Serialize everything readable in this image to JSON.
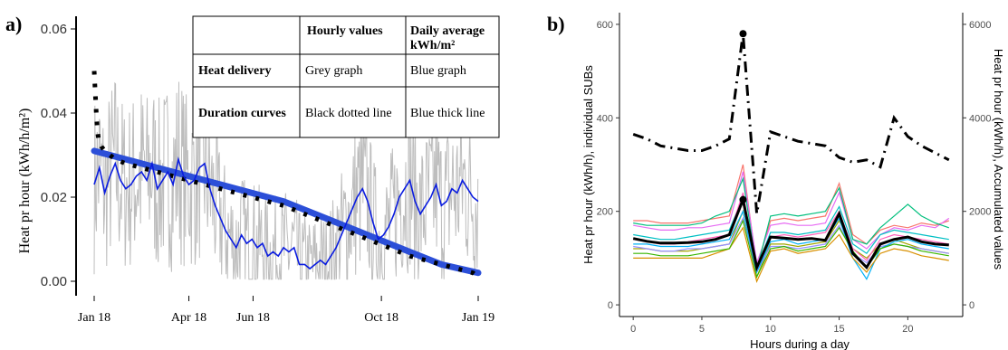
{
  "chart_data": [
    {
      "panel_label": "a)",
      "type": "line",
      "ylabel": "Heat pr hour (kWh/h/m²)",
      "ylim": [
        0,
        0.06
      ],
      "y_ticks": [
        "0.00",
        "0.02",
        "0.04",
        "0.06"
      ],
      "x_ticks": [
        "Jan 18",
        "Apr 18",
        "Jun 18",
        "Oct 18",
        "Jan 19"
      ],
      "x_tick_days": [
        0,
        90,
        151,
        273,
        365
      ],
      "grid": false,
      "legend_table": {
        "header": [
          "",
          "Hourly values",
          "Daily average kWh/m²"
        ],
        "rows": [
          [
            "Heat delivery",
            "Grey graph",
            "Blue graph"
          ],
          [
            "Duration curves",
            "Black dotted line",
            "Blue thick line"
          ]
        ]
      },
      "series": [
        {
          "color": "#0a1ce0",
          "x_days": [
            0,
            5,
            10,
            15,
            20,
            25,
            30,
            35,
            40,
            45,
            50,
            55,
            60,
            65,
            70,
            75,
            80,
            85,
            90,
            95,
            100,
            105,
            110,
            115,
            120,
            125,
            130,
            135,
            140,
            145,
            150,
            155,
            160,
            165,
            170,
            175,
            180,
            185,
            190,
            195,
            200,
            205,
            210,
            215,
            220,
            225,
            230,
            235,
            240,
            245,
            250,
            255,
            260,
            265,
            270,
            275,
            280,
            285,
            290,
            295,
            300,
            305,
            310,
            315,
            320,
            325,
            330,
            335,
            340,
            345,
            350,
            355,
            360,
            365
          ],
          "values": [
            0.023,
            0.027,
            0.021,
            0.025,
            0.028,
            0.024,
            0.022,
            0.023,
            0.025,
            0.026,
            0.024,
            0.028,
            0.022,
            0.024,
            0.026,
            0.023,
            0.029,
            0.025,
            0.023,
            0.024,
            0.027,
            0.028,
            0.022,
            0.018,
            0.015,
            0.012,
            0.01,
            0.008,
            0.011,
            0.009,
            0.01,
            0.008,
            0.009,
            0.006,
            0.007,
            0.006,
            0.008,
            0.007,
            0.008,
            0.004,
            0.004,
            0.003,
            0.004,
            0.005,
            0.004,
            0.006,
            0.008,
            0.011,
            0.014,
            0.017,
            0.02,
            0.022,
            0.019,
            0.014,
            0.01,
            0.011,
            0.013,
            0.016,
            0.02,
            0.022,
            0.024,
            0.019,
            0.016,
            0.018,
            0.02,
            0.023,
            0.018,
            0.019,
            0.022,
            0.021,
            0.024,
            0.022,
            0.02,
            0.019
          ]
        },
        {
          "color": "#2c4fd8",
          "x_days": [
            0,
            30,
            60,
            90,
            120,
            150,
            180,
            210,
            240,
            270,
            300,
            330,
            365
          ],
          "values": [
            0.031,
            0.029,
            0.027,
            0.025,
            0.023,
            0.021,
            0.019,
            0.016,
            0.013,
            0.01,
            0.007,
            0.004,
            0.002
          ]
        },
        {
          "color": "#000000",
          "x_days": [
            0,
            1,
            2,
            3,
            4,
            5,
            7,
            10,
            15,
            20,
            30,
            60,
            90,
            120,
            150,
            180,
            210,
            240,
            270,
            300,
            330,
            360,
            365
          ],
          "values": [
            0.05,
            0.045,
            0.04,
            0.036,
            0.034,
            0.033,
            0.032,
            0.031,
            0.03,
            0.029,
            0.028,
            0.026,
            0.024,
            0.022,
            0.02,
            0.018,
            0.015,
            0.012,
            0.009,
            0.006,
            0.004,
            0.002,
            0.001
          ]
        }
      ]
    },
    {
      "panel_label": "b)",
      "type": "line",
      "xlabel": "Hours during a day",
      "ylabel": "Heat pr hour (kWh/h), individual SUBs",
      "ylabel_right": "Heat pr hour (kWh/h), Accumulated values",
      "x": [
        0,
        1,
        2,
        3,
        4,
        5,
        6,
        7,
        8,
        9,
        10,
        11,
        12,
        13,
        14,
        15,
        16,
        17,
        18,
        19,
        20,
        21,
        22,
        23
      ],
      "xlim": [
        -1,
        24
      ],
      "ylim": [
        -25,
        625
      ],
      "x_ticks": [
        "0",
        "5",
        "10",
        "15",
        "20"
      ],
      "y_ticks": [
        "0",
        "200",
        "400",
        "600"
      ],
      "y2_ticks": [
        "0",
        "2000",
        "4000",
        "6000"
      ],
      "y2_to_y_factor": 0.1,
      "grid": false,
      "series": [
        {
          "color": "#f8766d",
          "values": [
            180,
            180,
            175,
            175,
            175,
            180,
            185,
            190,
            300,
            80,
            180,
            185,
            180,
            185,
            190,
            260,
            150,
            130,
            160,
            170,
            165,
            175,
            170,
            180
          ]
        },
        {
          "color": "#e76bf3",
          "values": [
            170,
            165,
            160,
            160,
            165,
            165,
            170,
            175,
            285,
            90,
            170,
            175,
            170,
            170,
            175,
            240,
            140,
            120,
            150,
            165,
            160,
            170,
            165,
            185
          ]
        },
        {
          "color": "#00bf7d",
          "values": [
            175,
            170,
            170,
            170,
            170,
            175,
            190,
            200,
            270,
            75,
            190,
            195,
            190,
            195,
            200,
            250,
            140,
            130,
            165,
            190,
            215,
            190,
            175,
            165
          ]
        },
        {
          "color": "#a3a500",
          "values": [
            120,
            120,
            115,
            115,
            115,
            120,
            125,
            130,
            200,
            60,
            130,
            130,
            125,
            130,
            135,
            180,
            120,
            100,
            130,
            140,
            130,
            120,
            115,
            110
          ]
        },
        {
          "color": "#9590ff",
          "values": [
            125,
            120,
            115,
            115,
            120,
            120,
            125,
            130,
            185,
            70,
            125,
            125,
            120,
            125,
            130,
            170,
            110,
            90,
            125,
            130,
            125,
            120,
            115,
            110
          ]
        },
        {
          "color": "#00b0f6",
          "values": [
            130,
            130,
            125,
            125,
            125,
            130,
            135,
            140,
            200,
            70,
            135,
            140,
            130,
            135,
            140,
            185,
            100,
            55,
            120,
            135,
            140,
            130,
            125,
            120
          ]
        },
        {
          "color": "#d89000",
          "values": [
            100,
            100,
            100,
            100,
            100,
            100,
            110,
            120,
            165,
            50,
            115,
            120,
            110,
            115,
            120,
            150,
            100,
            70,
            110,
            120,
            115,
            105,
            100,
            95
          ]
        },
        {
          "color": "#39b600",
          "values": [
            110,
            110,
            105,
            105,
            105,
            110,
            115,
            120,
            180,
            60,
            120,
            125,
            115,
            120,
            125,
            165,
            115,
            80,
            120,
            130,
            125,
            115,
            110,
            105
          ]
        },
        {
          "color": "#00bfc4",
          "values": [
            150,
            145,
            140,
            140,
            145,
            150,
            155,
            160,
            230,
            80,
            155,
            155,
            150,
            155,
            160,
            210,
            130,
            110,
            150,
            160,
            155,
            150,
            145,
            140
          ]
        },
        {
          "color": "#ff62bc",
          "values": [
            140,
            135,
            130,
            130,
            135,
            140,
            145,
            150,
            240,
            75,
            145,
            150,
            145,
            150,
            155,
            200,
            120,
            95,
            140,
            150,
            145,
            140,
            135,
            130
          ]
        },
        {
          "color": "#000000",
          "axis": "left",
          "values": [
            142,
            136,
            132,
            132,
            133,
            135,
            140,
            150,
            225,
            80,
            145,
            143,
            140,
            142,
            138,
            195,
            110,
            80,
            130,
            140,
            145,
            135,
            130,
            128
          ]
        },
        {
          "color": "#000000",
          "axis": "right",
          "style": "dashdot",
          "values": [
            3650,
            3550,
            3400,
            3350,
            3300,
            3300,
            3400,
            3550,
            5800,
            1950,
            3700,
            3600,
            3500,
            3450,
            3400,
            3150,
            3050,
            3100,
            2950,
            4000,
            3600,
            3400,
            3250,
            3100
          ]
        }
      ]
    }
  ]
}
